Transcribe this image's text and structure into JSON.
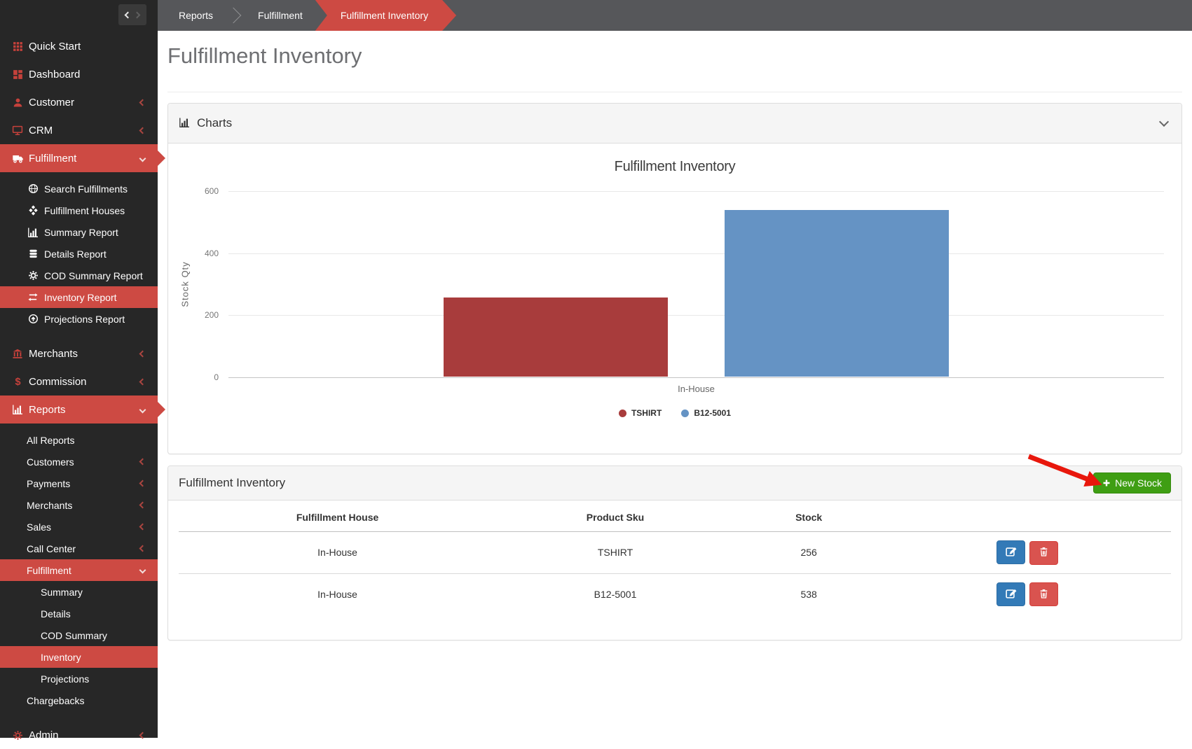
{
  "app": {
    "page_title": "Fulfillment Inventory",
    "breadcrumbs": [
      {
        "label": "Reports",
        "active": false
      },
      {
        "label": "Fulfillment",
        "active": false
      },
      {
        "label": "Fulfillment Inventory",
        "active": true
      }
    ]
  },
  "colors": {
    "accent_red": "#cd4a43",
    "sidebar_bg": "#272727",
    "breadcrumb_bg": "#56575a",
    "green_button": "#3f9e13",
    "edit_blue": "#337ab7",
    "delete_red": "#d9534f",
    "bar_red": "#a83c3c",
    "bar_blue": "#6593c4",
    "annotation_red": "#e8170c"
  },
  "sidebar": {
    "items": [
      {
        "label": "Quick Start",
        "icon": "grid-icon",
        "level": 0
      },
      {
        "label": "Dashboard",
        "icon": "dashboard-icon",
        "level": 0
      },
      {
        "label": "Customer",
        "icon": "user-icon",
        "level": 0,
        "chevron": "left"
      },
      {
        "label": "CRM",
        "icon": "monitor-icon",
        "level": 0,
        "chevron": "left"
      },
      {
        "label": "Fulfillment",
        "icon": "truck-icon",
        "level": 0,
        "chevron": "down",
        "active": true,
        "pointer": true
      },
      {
        "label": "Search Fulfillments",
        "icon": "globe-icon",
        "level": 1
      },
      {
        "label": "Fulfillment Houses",
        "icon": "cubes-icon",
        "level": 1
      },
      {
        "label": "Summary Report",
        "icon": "bar-chart-icon",
        "level": 1
      },
      {
        "label": "Details Report",
        "icon": "database-icon",
        "level": 1
      },
      {
        "label": "COD Summary Report",
        "icon": "gear-icon",
        "level": 1
      },
      {
        "label": "Inventory Report",
        "icon": "exchange-icon",
        "level": 1,
        "active": true
      },
      {
        "label": "Projections Report",
        "icon": "arrow-circle-up-icon",
        "level": 1
      },
      {
        "label": "Merchants",
        "icon": "bank-icon",
        "level": 0,
        "chevron": "left"
      },
      {
        "label": "Commission",
        "icon": "dollar-icon",
        "level": 0,
        "chevron": "left"
      },
      {
        "label": "Reports",
        "icon": "bar-chart-icon",
        "level": 0,
        "chevron": "down",
        "active": true,
        "pointer": true
      },
      {
        "label": "All Reports",
        "level": 1
      },
      {
        "label": "Customers",
        "level": 1,
        "chevron": "left"
      },
      {
        "label": "Payments",
        "level": 1,
        "chevron": "left"
      },
      {
        "label": "Merchants",
        "level": 1,
        "chevron": "left"
      },
      {
        "label": "Sales",
        "level": 1,
        "chevron": "left"
      },
      {
        "label": "Call Center",
        "level": 1,
        "chevron": "left"
      },
      {
        "label": "Fulfillment",
        "level": 1,
        "chevron": "down",
        "active": true
      },
      {
        "label": "Summary",
        "level": 2
      },
      {
        "label": "Details",
        "level": 2
      },
      {
        "label": "COD Summary",
        "level": 2
      },
      {
        "label": "Inventory",
        "level": 2,
        "active": true
      },
      {
        "label": "Projections",
        "level": 2
      },
      {
        "label": "Chargebacks",
        "level": 1
      },
      {
        "label": "Admin",
        "icon": "gear-icon",
        "level": 0,
        "chevron": "left"
      }
    ]
  },
  "charts_panel": {
    "title": "Charts",
    "icon": "bar-chart-icon",
    "collapse_icon": "chevron-down-icon"
  },
  "chart_data": {
    "type": "bar",
    "title": "Fulfillment Inventory",
    "categories": [
      "In-House"
    ],
    "series": [
      {
        "name": "TSHIRT",
        "values": [
          256
        ],
        "color": "#a83c3c"
      },
      {
        "name": "B12-5001",
        "values": [
          538
        ],
        "color": "#6593c4"
      }
    ],
    "xlabel": "",
    "ylabel": "Stock Qty",
    "ylim": [
      0,
      600
    ],
    "yticks": [
      0,
      200,
      400,
      600
    ],
    "grid": true,
    "legend_position": "bottom"
  },
  "inventory_panel": {
    "title": "Fulfillment Inventory",
    "new_stock_label": "New Stock",
    "table": {
      "columns": [
        "Fulfillment House",
        "Product Sku",
        "Stock",
        ""
      ],
      "rows": [
        {
          "fulfillment_house": "In-House",
          "product_sku": "TSHIRT",
          "stock": "256"
        },
        {
          "fulfillment_house": "In-House",
          "product_sku": "B12-5001",
          "stock": "538"
        }
      ]
    }
  }
}
